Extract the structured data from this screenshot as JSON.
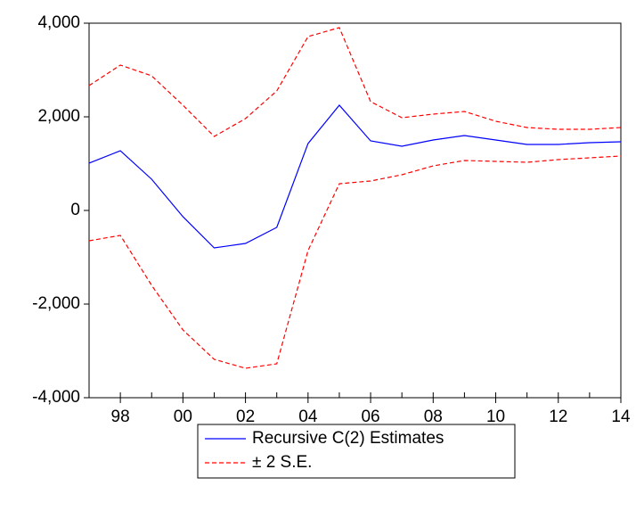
{
  "chart_data": {
    "type": "line",
    "x": [
      1997,
      1998,
      1999,
      2000,
      2001,
      2002,
      2003,
      2004,
      2005,
      2006,
      2007,
      2008,
      2009,
      2010,
      2011,
      2012,
      2013,
      2014
    ],
    "xlim": [
      1997,
      2014
    ],
    "xticks": [
      {
        "value": 1998,
        "label": "98"
      },
      {
        "value": 2000,
        "label": "00"
      },
      {
        "value": 2002,
        "label": "02"
      },
      {
        "value": 2004,
        "label": "04"
      },
      {
        "value": 2006,
        "label": "06"
      },
      {
        "value": 2008,
        "label": "08"
      },
      {
        "value": 2010,
        "label": "10"
      },
      {
        "value": 2012,
        "label": "12"
      },
      {
        "value": 2014,
        "label": "14"
      }
    ],
    "ylim": [
      -4000,
      4000
    ],
    "yticks": [
      {
        "value": -4000,
        "label": "-4,000"
      },
      {
        "value": -2000,
        "label": "-2,000"
      },
      0,
      {
        "value": 2000,
        "label": "2,000"
      },
      {
        "value": 4000,
        "label": "4,000"
      }
    ],
    "series": [
      {
        "name": "Recursive C(2) Estimates",
        "color": "#0000ff",
        "dashed": false,
        "values": [
          1010,
          1276,
          667,
          -133,
          -800,
          -705,
          -362,
          1429,
          2248,
          1486,
          1371,
          1505,
          1600,
          1505,
          1410,
          1410,
          1448,
          1467
        ]
      },
      {
        "name": "± 2 S.E.",
        "color": "#ff0000",
        "dashed": true,
        "upper": [
          2667,
          3105,
          2876,
          2248,
          1581,
          1962,
          2552,
          3714,
          3905,
          2324,
          1981,
          2057,
          2114,
          1905,
          1771,
          1733,
          1733,
          1771
        ],
        "lower": [
          -648,
          -533,
          -1600,
          -2552,
          -3181,
          -3371,
          -3276,
          -857,
          571,
          629,
          762,
          952,
          1067,
          1048,
          1029,
          1086,
          1124,
          1162
        ]
      }
    ]
  }
}
